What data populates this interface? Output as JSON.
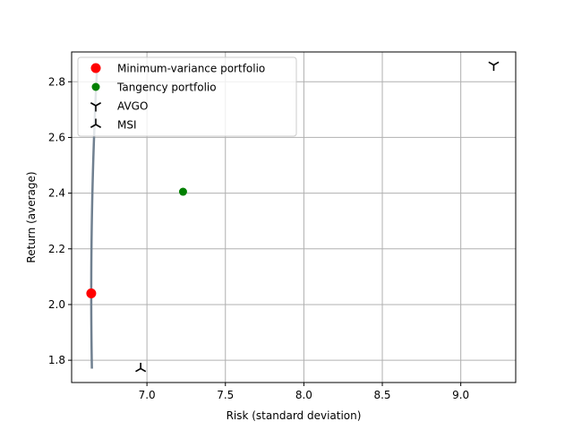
{
  "chart_data": {
    "type": "line",
    "xlabel": "Risk (standard deviation)",
    "ylabel": "Return (average)",
    "xlim": [
      6.52,
      9.35
    ],
    "ylim": [
      1.72,
      2.907
    ],
    "xticks": [
      7.0,
      7.5,
      8.0,
      8.5,
      9.0
    ],
    "yticks": [
      1.8,
      2.0,
      2.2,
      2.4,
      2.6,
      2.8
    ],
    "xtick_labels": [
      "7.0",
      "7.5",
      "8.0",
      "8.5",
      "9.0"
    ],
    "ytick_labels": [
      "1.8",
      "2.0",
      "2.2",
      "2.4",
      "2.6",
      "2.8"
    ],
    "grid": true,
    "legend_position": "top-left",
    "frontier": {
      "color": "#708090",
      "min_variance_risk": 6.645,
      "min_variance_return": 2.04,
      "a": 0.87,
      "return_range": [
        1.77,
        2.86
      ]
    },
    "series": [
      {
        "name": "Minimum-variance portfolio",
        "marker": "circle",
        "color": "#ff0000",
        "x": 6.645,
        "y": 2.04
      },
      {
        "name": "Tangency portfolio",
        "marker": "circle",
        "color": "#008000",
        "x": 7.23,
        "y": 2.405
      },
      {
        "name": "AVGO",
        "marker": "tri_down",
        "color": "#000000",
        "x": 9.21,
        "y": 2.86
      },
      {
        "name": "MSI",
        "marker": "tri_up",
        "color": "#000000",
        "x": 6.96,
        "y": 1.77
      }
    ]
  }
}
